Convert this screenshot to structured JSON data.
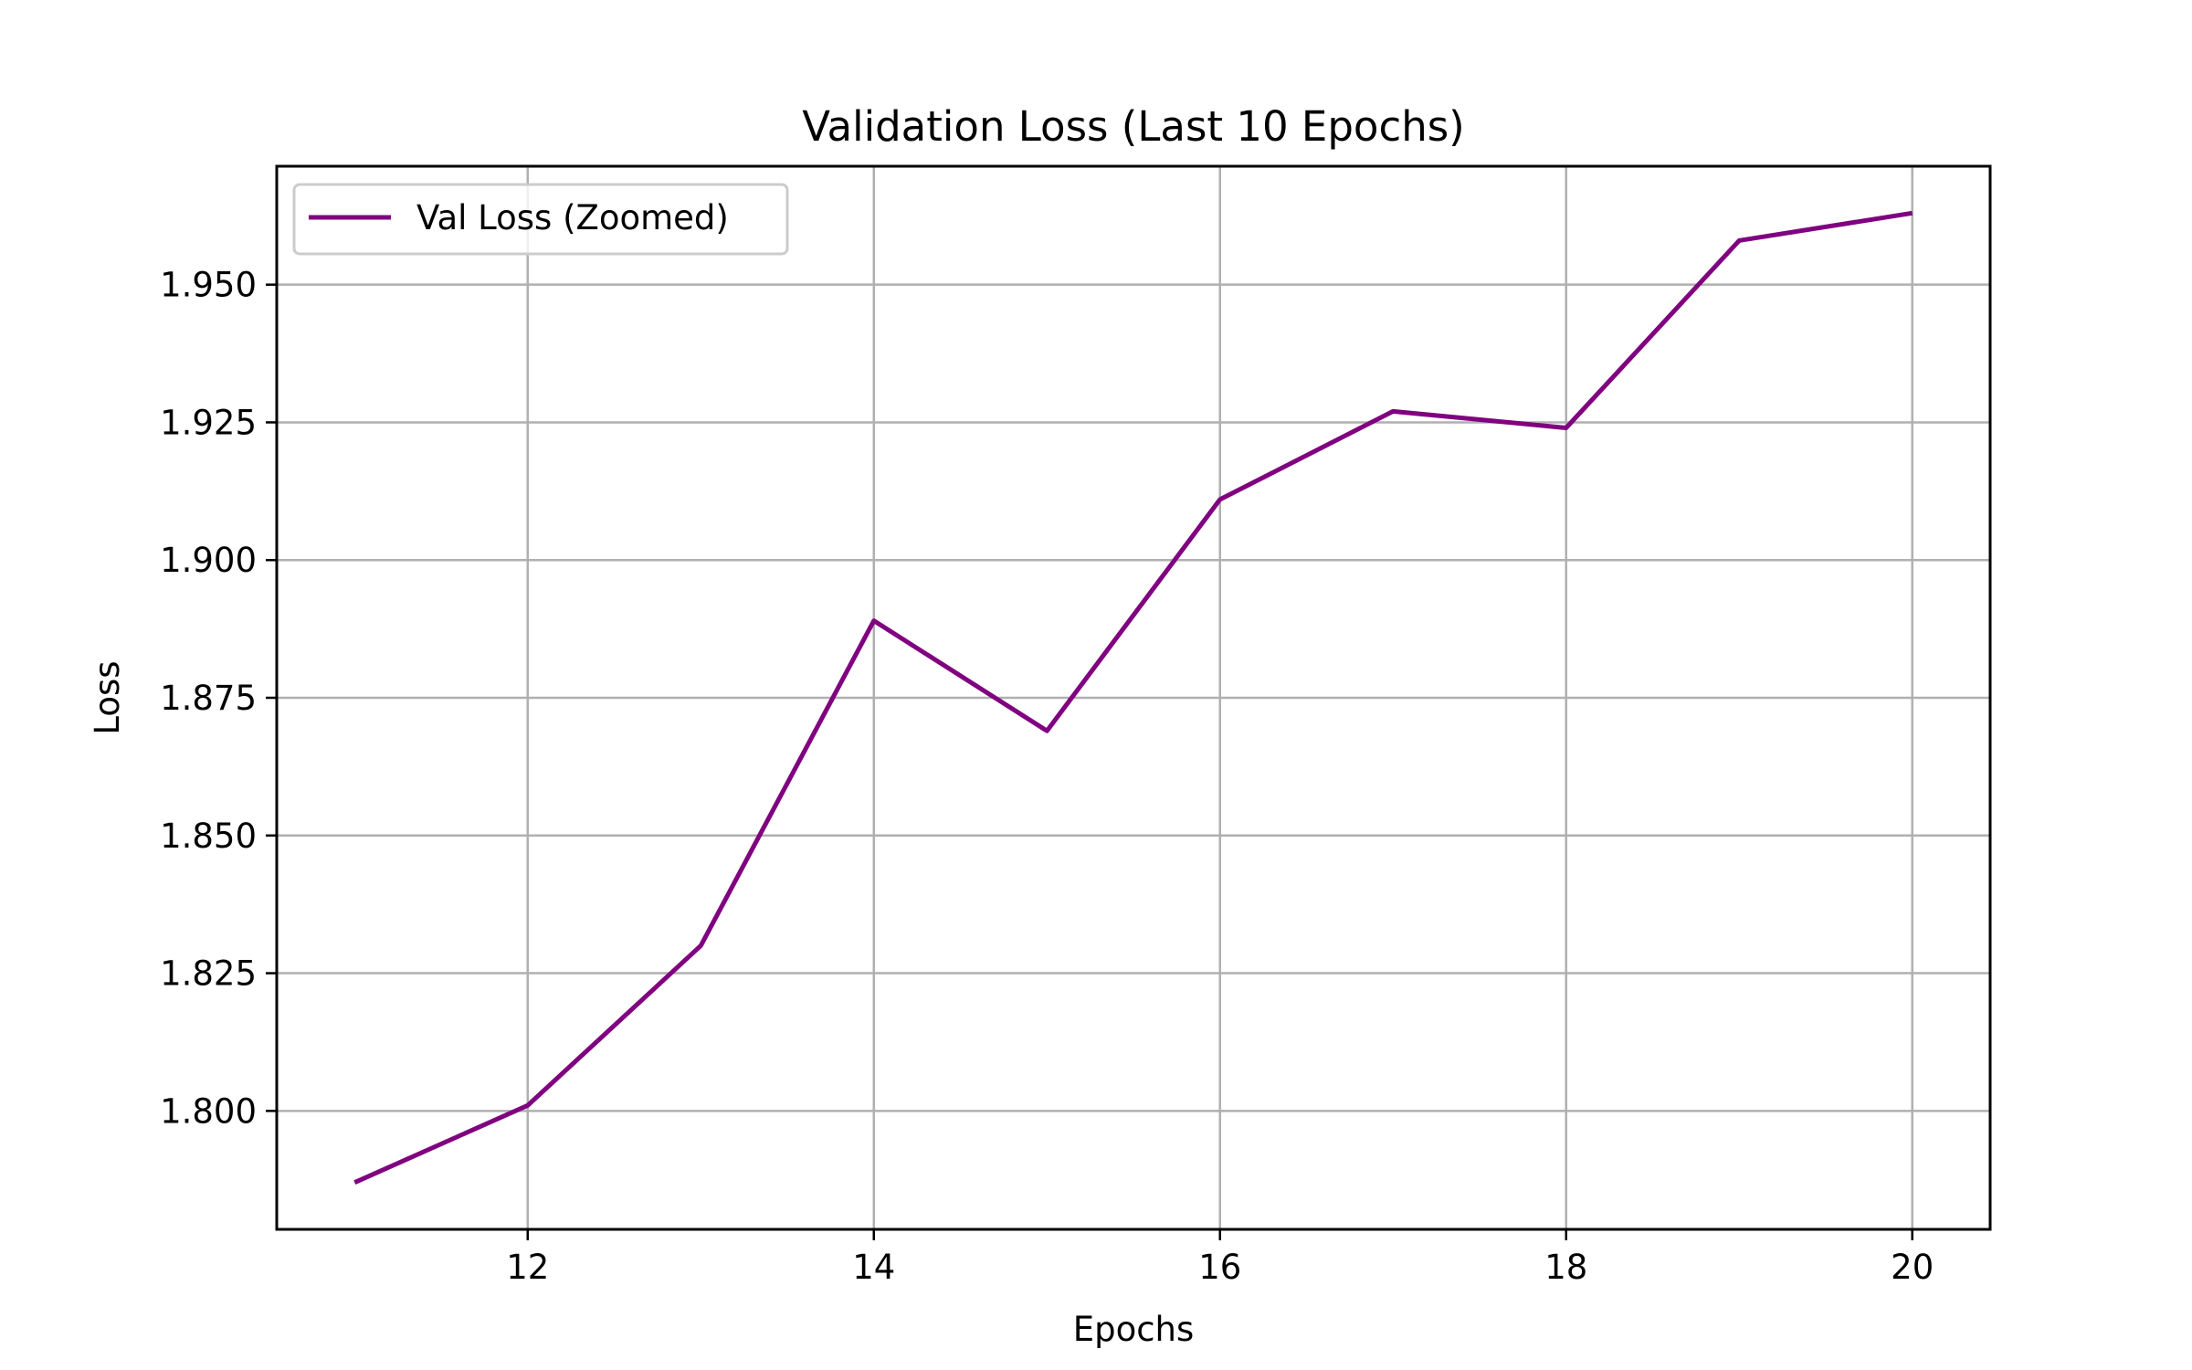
{
  "chart_data": {
    "type": "line",
    "title": "Validation Loss (Last 10 Epochs)",
    "xlabel": "Epochs",
    "ylabel": "Loss",
    "x": [
      11,
      12,
      13,
      14,
      15,
      16,
      17,
      18,
      19,
      20
    ],
    "series": [
      {
        "name": "Val Loss (Zoomed)",
        "color": "#800080",
        "values": [
          1.787,
          1.801,
          1.83,
          1.889,
          1.869,
          1.911,
          1.927,
          1.924,
          1.958,
          1.963
        ]
      }
    ],
    "xlim": [
      10.55,
      20.45
    ],
    "ylim": [
      1.7785,
      1.9715
    ],
    "xticks": [
      12,
      14,
      16,
      18,
      20
    ],
    "xtick_labels": [
      "12",
      "14",
      "16",
      "18",
      "20"
    ],
    "yticks": [
      1.8,
      1.825,
      1.85,
      1.875,
      1.9,
      1.925,
      1.95
    ],
    "ytick_labels": [
      "1.800",
      "1.825",
      "1.850",
      "1.875",
      "1.900",
      "1.925",
      "1.950"
    ],
    "grid": true,
    "grid_color": "#b0b0b0",
    "legend_position": "upper left"
  }
}
